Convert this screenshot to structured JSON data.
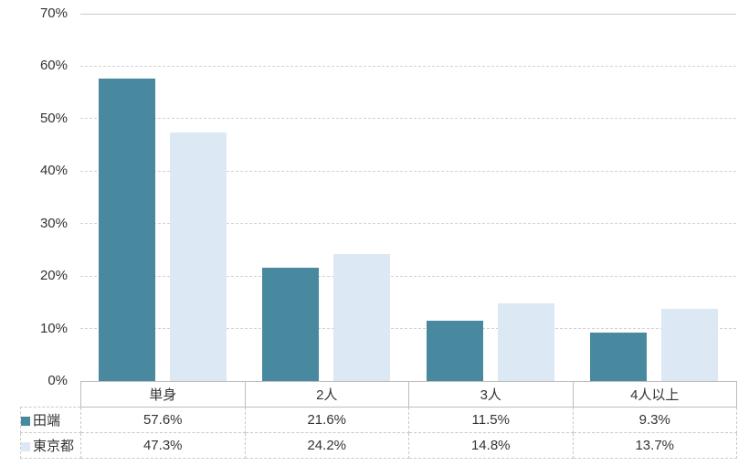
{
  "chart_data": {
    "type": "bar",
    "title": "",
    "xlabel": "",
    "ylabel": "",
    "categories": [
      "単身",
      "2人",
      "3人",
      "4人以上"
    ],
    "series": [
      {
        "name": "田端",
        "color": "#4889A0",
        "values": [
          57.6,
          21.6,
          11.5,
          9.3
        ],
        "labels": [
          "57.6%",
          "21.6%",
          "11.5%",
          "9.3%"
        ]
      },
      {
        "name": "東京都",
        "color": "#DCE9F5",
        "values": [
          47.3,
          24.2,
          14.8,
          13.7
        ],
        "labels": [
          "47.3%",
          "24.2%",
          "14.8%",
          "13.7%"
        ]
      }
    ],
    "ylim": [
      0,
      70
    ],
    "ytick_step": 10,
    "y_tick_labels": [
      "0%",
      "10%",
      "20%",
      "30%",
      "40%",
      "50%",
      "60%",
      "70%"
    ],
    "grid": true,
    "gridline_color": "#d2d2d2",
    "legend_position": "data-table-left"
  }
}
